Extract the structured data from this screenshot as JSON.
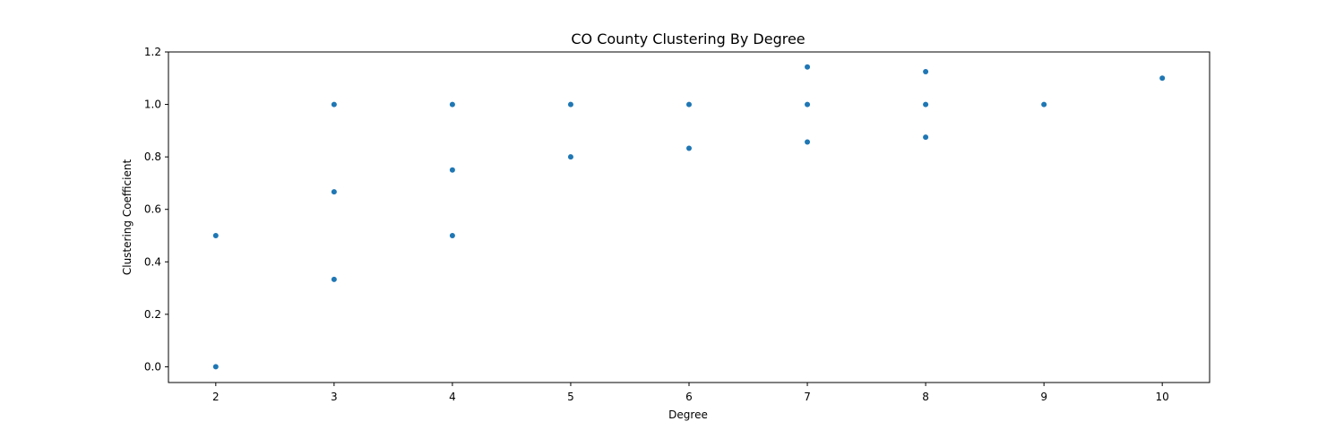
{
  "chart_data": {
    "type": "scatter",
    "title": "CO County Clustering By Degree",
    "xlabel": "Degree",
    "ylabel": "Clustering Coefficient",
    "xlim": [
      1.6,
      10.4
    ],
    "ylim": [
      -0.06,
      1.2
    ],
    "x_ticks": [
      "2",
      "3",
      "4",
      "5",
      "6",
      "7",
      "8",
      "9",
      "10"
    ],
    "y_ticks": [
      "0.0",
      "0.2",
      "0.4",
      "0.6",
      "0.8",
      "1.0",
      "1.2"
    ],
    "grid": false,
    "marker_color": "#1f77b4",
    "points": [
      {
        "x": 2,
        "y": 0.5
      },
      {
        "x": 2,
        "y": 0.0
      },
      {
        "x": 3,
        "y": 1.0
      },
      {
        "x": 3,
        "y": 0.667
      },
      {
        "x": 3,
        "y": 0.333
      },
      {
        "x": 4,
        "y": 1.0
      },
      {
        "x": 4,
        "y": 0.75
      },
      {
        "x": 4,
        "y": 0.5
      },
      {
        "x": 5,
        "y": 1.0
      },
      {
        "x": 5,
        "y": 0.8
      },
      {
        "x": 6,
        "y": 1.0
      },
      {
        "x": 6,
        "y": 0.833
      },
      {
        "x": 7,
        "y": 1.143
      },
      {
        "x": 7,
        "y": 1.0
      },
      {
        "x": 7,
        "y": 0.857
      },
      {
        "x": 8,
        "y": 1.125
      },
      {
        "x": 8,
        "y": 1.0
      },
      {
        "x": 8,
        "y": 0.875
      },
      {
        "x": 9,
        "y": 1.0
      },
      {
        "x": 10,
        "y": 1.1
      }
    ]
  }
}
